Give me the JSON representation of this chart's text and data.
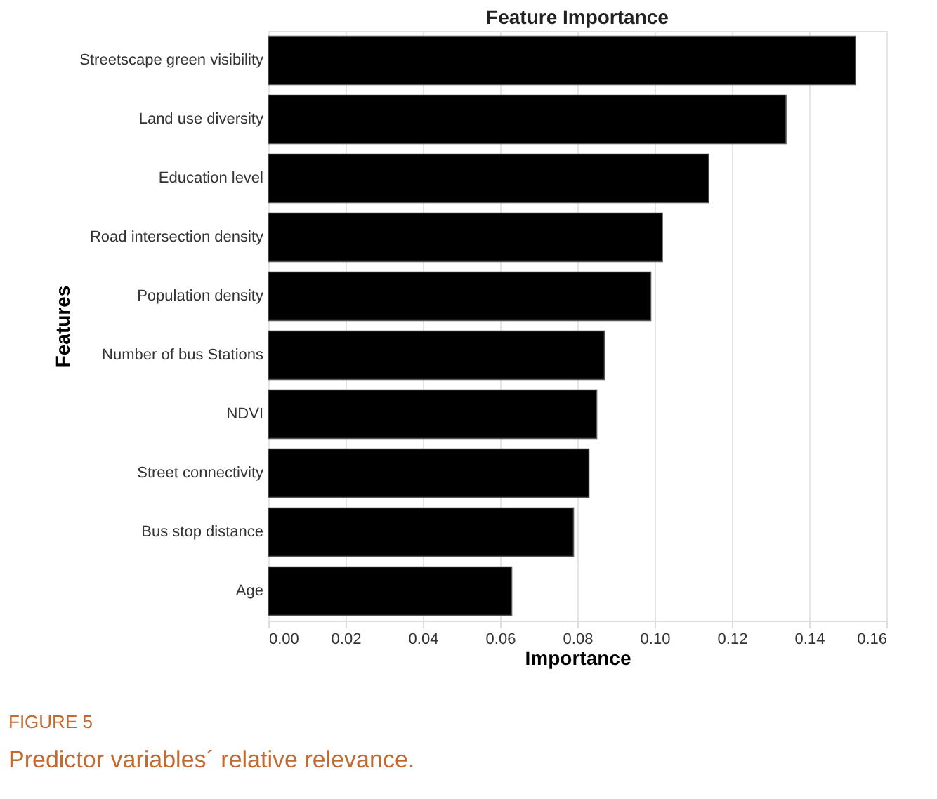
{
  "chart_data": {
    "type": "bar",
    "orientation": "horizontal",
    "title": "Feature Importance",
    "xlabel": "Importance",
    "ylabel": "Features",
    "categories": [
      "Streetscape green visibility",
      "Land  use  diversity",
      "Education  level",
      "Road  intersection  density",
      "Population  density",
      "Number  of  bus  Stations",
      "NDVI",
      "Street  connectivity",
      "Bus  stop  distance",
      "Age"
    ],
    "values": [
      0.152,
      0.134,
      0.114,
      0.102,
      0.099,
      0.087,
      0.085,
      0.083,
      0.079,
      0.063
    ],
    "color": "#000000",
    "xlim": [
      0,
      0.16
    ],
    "xticks": [
      {
        "value": 0,
        "label": "0.00"
      },
      {
        "value": 0.02,
        "label": "0.02"
      },
      {
        "value": 0.04,
        "label": "0.04"
      },
      {
        "value": 0.06,
        "label": "0.06"
      },
      {
        "value": 0.08,
        "label": "0.08"
      },
      {
        "value": 0.1,
        "label": "0.10"
      },
      {
        "value": 0.12,
        "label": "0.12"
      },
      {
        "value": 0.14,
        "label": "0.14"
      },
      {
        "value": 0.16,
        "label": "0.16"
      }
    ],
    "grid": "x",
    "annotations": [
      "FIGURE 5",
      "Predictor variables´ relative relevance."
    ]
  }
}
